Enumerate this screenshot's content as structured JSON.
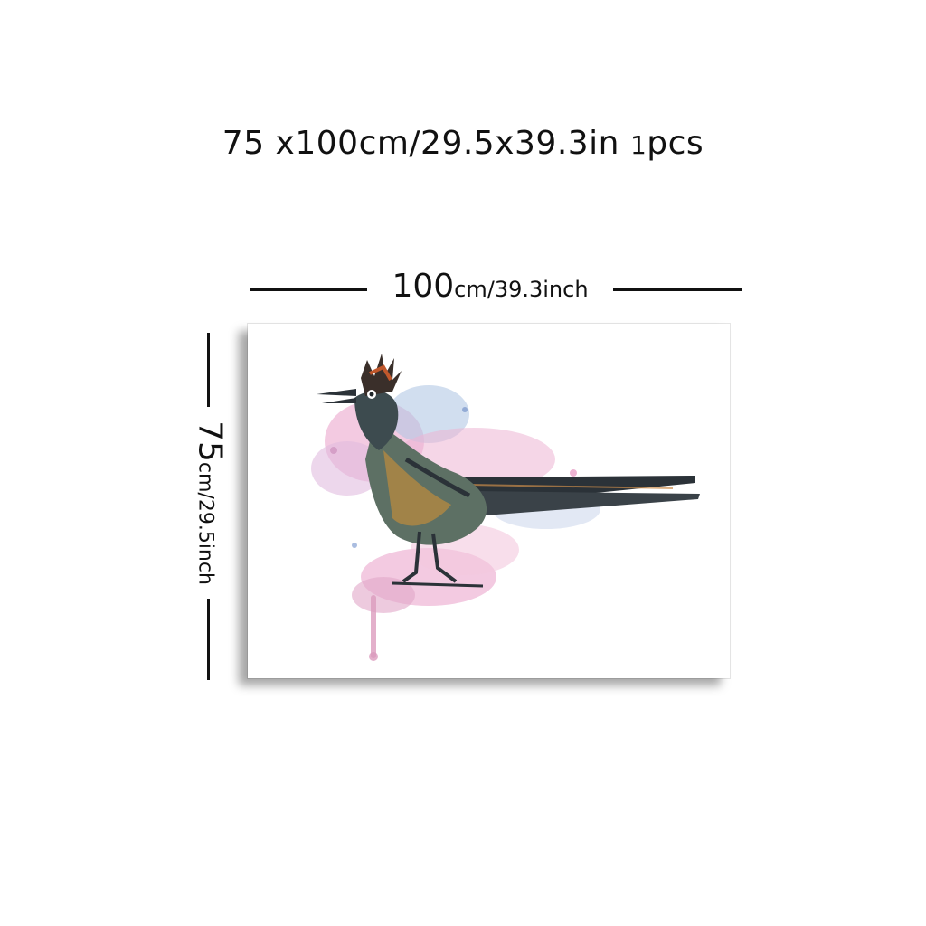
{
  "headline": {
    "size_text": "75 x100cm/29.5x39.3in",
    "qty_number": "1",
    "qty_unit": "pcs"
  },
  "width_label": {
    "big": "100",
    "small": "cm/39.3inch"
  },
  "height_label": {
    "big": "75",
    "small": "cm/29.5inch"
  },
  "artwork": {
    "subject": "roadrunner-bird-icon"
  },
  "colors": {
    "text": "#111111",
    "splash_pink": "#e79ac4",
    "splash_blue": "#9ab6dc",
    "bird_dark": "#2b3238"
  }
}
